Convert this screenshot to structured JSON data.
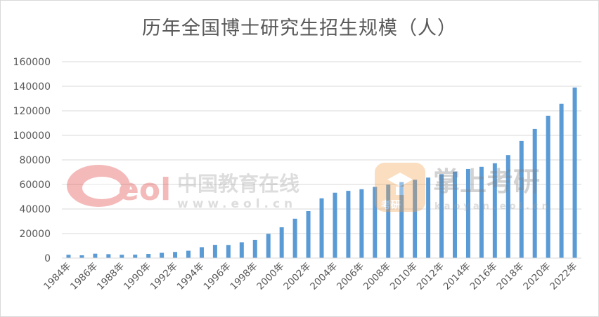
{
  "chart_data": {
    "type": "bar",
    "title": "历年全国博士研究生招生规模（人）",
    "xlabel": "",
    "ylabel": "",
    "ylim": [
      0,
      160000
    ],
    "yticks": [
      0,
      20000,
      40000,
      60000,
      80000,
      100000,
      120000,
      140000,
      160000
    ],
    "categories": [
      "1984年",
      "1985年",
      "1986年",
      "1987年",
      "1988年",
      "1989年",
      "1990年",
      "1991年",
      "1992年",
      "1993年",
      "1994年",
      "1995年",
      "1996年",
      "1997年",
      "1998年",
      "1999年",
      "2000年",
      "2001年",
      "2002年",
      "2003年",
      "2004年",
      "2005年",
      "2006年",
      "2007年",
      "2008年",
      "2009年",
      "2010年",
      "2011年",
      "2012年",
      "2013年",
      "2014年",
      "2015年",
      "2016年",
      "2017年",
      "2018年",
      "2019年",
      "2020年",
      "2021年",
      "2022年"
    ],
    "xtick_labels": [
      "1984年",
      "1986年",
      "1988年",
      "1990年",
      "1992年",
      "1994年",
      "1996年",
      "1998年",
      "2000年",
      "2002年",
      "2004年",
      "2006年",
      "2008年",
      "2010年",
      "2012年",
      "2014年",
      "2016年",
      "2018年",
      "2020年",
      "2022年"
    ],
    "values": [
      2700,
      2300,
      3600,
      3200,
      2700,
      2800,
      3400,
      4300,
      5000,
      6000,
      8900,
      10800,
      10700,
      12900,
      14900,
      19700,
      25100,
      32100,
      38300,
      48700,
      53300,
      54800,
      56100,
      58000,
      59800,
      61900,
      63800,
      65600,
      68400,
      70500,
      72600,
      74400,
      77300,
      83900,
      95500,
      105200,
      116000,
      125800,
      139000
    ],
    "grid": true,
    "legend": "none",
    "bar_color": "#5b9bd5"
  },
  "watermarks": {
    "left_logo_text": "eol",
    "left_name": "中国教育在线",
    "left_url": "www.eol.cn",
    "right_name": "掌上考研",
    "right_sub": "考研",
    "right_url": "kaoyan.eol.cn"
  }
}
